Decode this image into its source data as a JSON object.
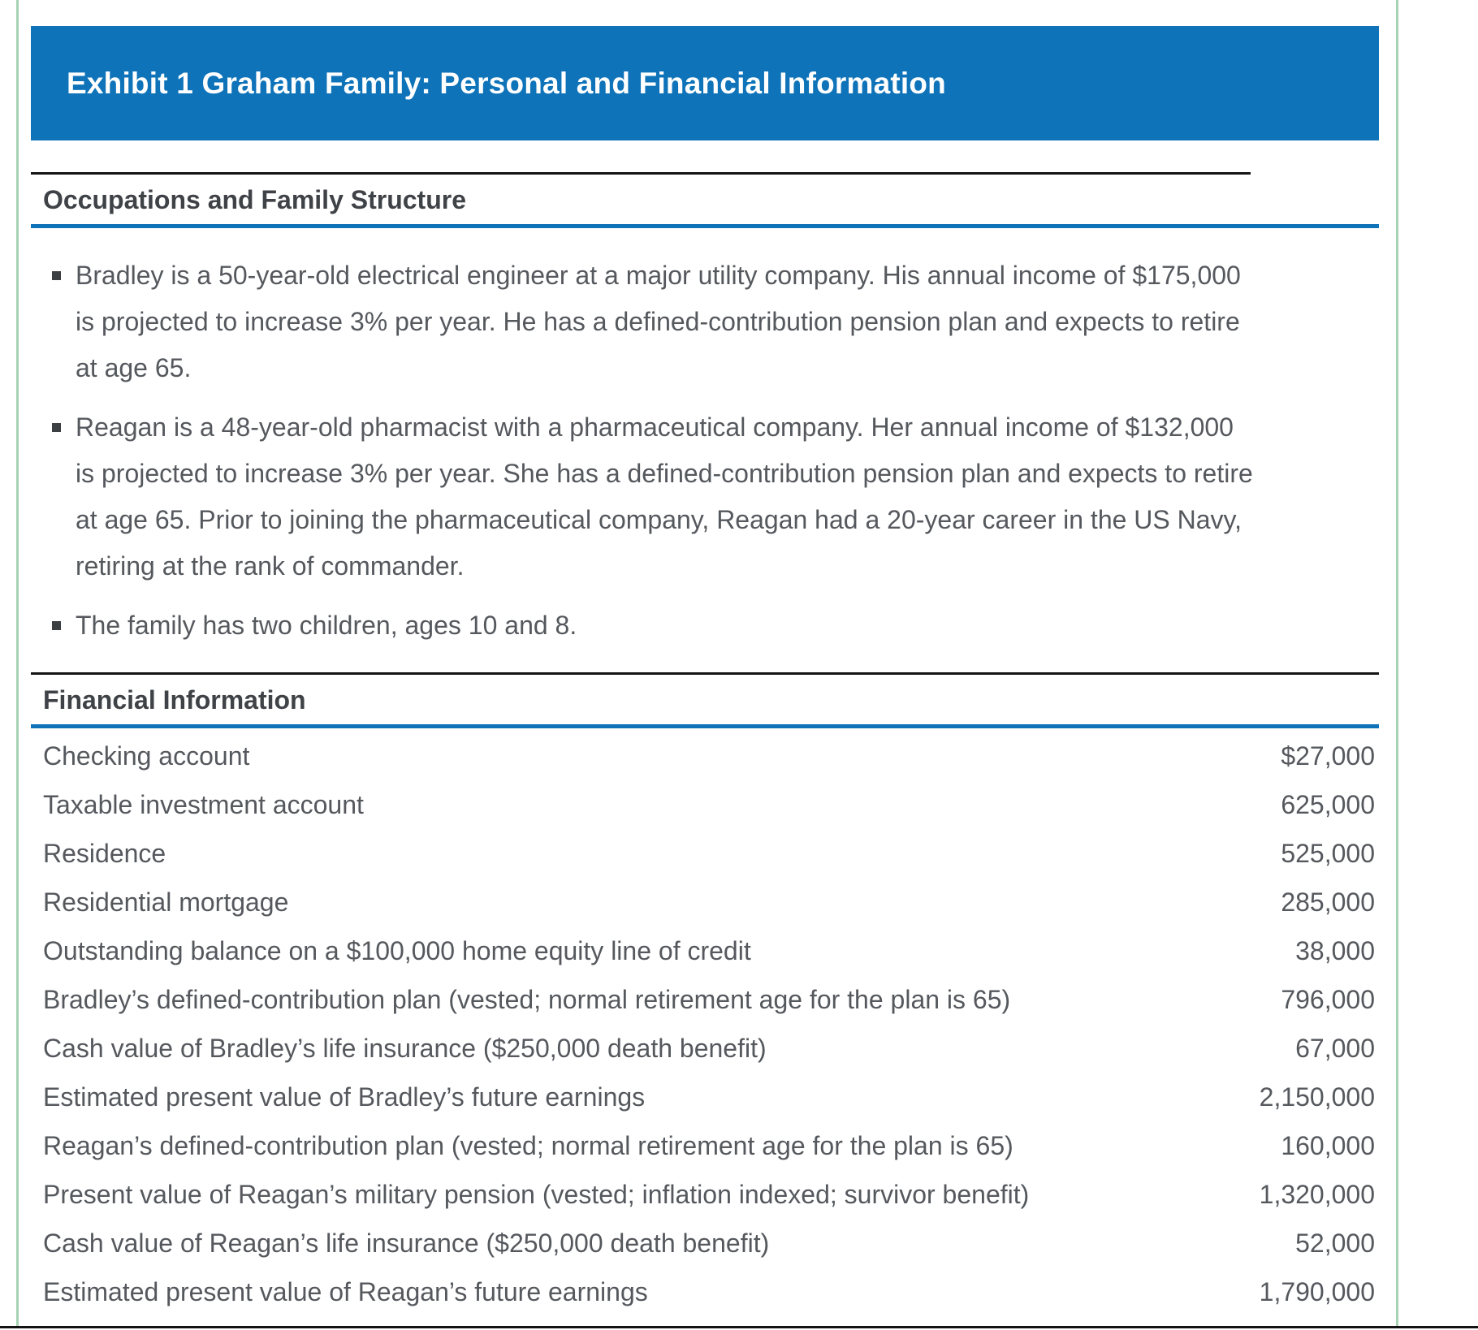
{
  "page": {
    "background": "#ffffff",
    "accent_blue": "#0e73b9",
    "border_green": "#a6d3b3",
    "rule_black": "#141414",
    "heading_color": "#3f4246",
    "body_color": "#55585d"
  },
  "header": {
    "title": "Exhibit 1 Graham Family: Personal and Financial Information"
  },
  "occupations": {
    "heading": "Occupations and Family Structure",
    "bullets": [
      "Bradley is a 50-year-old electrical engineer at a major utility company. His annual income of $175,000 is projected to increase 3% per year. He has a defined-contribution pension plan and expects to retire at age 65.",
      "Reagan is a 48-year-old pharmacist with a pharmaceutical company. Her annual income of $132,000 is projected to increase 3% per year. She has a defined-contribution pension plan and expects to retire at age 65. Prior to joining the pharmaceutical company, Reagan had a 20-year career in the US Navy, retiring at the rank of commander.",
      "The family has two children, ages 10 and 8."
    ]
  },
  "financial": {
    "heading": "Financial Information",
    "rows": [
      {
        "label": "Checking account",
        "value": "$27,000"
      },
      {
        "label": "Taxable investment account",
        "value": "625,000"
      },
      {
        "label": "Residence",
        "value": "525,000"
      },
      {
        "label": "Residential mortgage",
        "value": "285,000"
      },
      {
        "label": "Outstanding balance on a $100,000 home equity line of credit",
        "value": "38,000"
      },
      {
        "label": "Bradley’s defined-contribution plan (vested; normal retirement age for the plan is 65)",
        "value": "796,000"
      },
      {
        "label": "Cash value of Bradley’s life insurance ($250,000 death benefit)",
        "value": "67,000"
      },
      {
        "label": "Estimated present value of Bradley’s future earnings",
        "value": "2,150,000"
      },
      {
        "label": "Reagan’s defined-contribution plan (vested; normal retirement age for the plan is 65)",
        "value": "160,000"
      },
      {
        "label": "Present value of Reagan’s military pension (vested; inflation indexed; survivor benefit)",
        "value": "1,320,000"
      },
      {
        "label": "Cash value of Reagan’s life insurance ($250,000 death benefit)",
        "value": "52,000"
      },
      {
        "label": "Estimated present value of Reagan’s future earnings",
        "value": "1,790,000"
      }
    ]
  }
}
